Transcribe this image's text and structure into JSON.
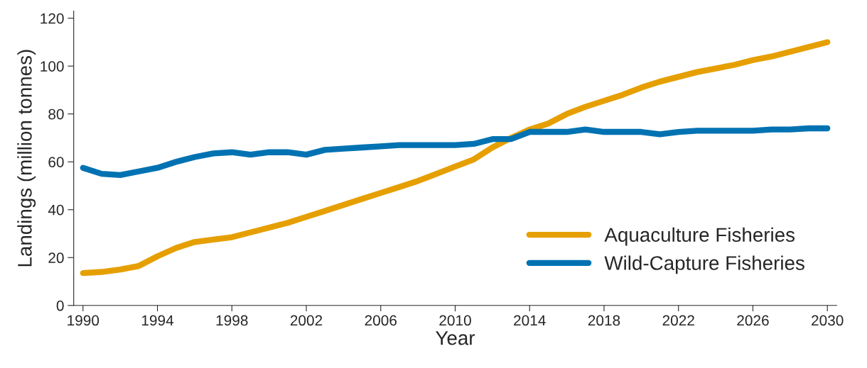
{
  "chart_data": {
    "type": "line",
    "xlabel": "Year",
    "ylabel": "Landings (million tonnes)",
    "x": [
      1990,
      1991,
      1992,
      1993,
      1994,
      1995,
      1996,
      1997,
      1998,
      1999,
      2000,
      2001,
      2002,
      2003,
      2004,
      2005,
      2006,
      2007,
      2008,
      2009,
      2010,
      2011,
      2012,
      2013,
      2014,
      2015,
      2016,
      2017,
      2018,
      2019,
      2020,
      2021,
      2022,
      2023,
      2024,
      2025,
      2026,
      2027,
      2028,
      2029,
      2030
    ],
    "series": [
      {
        "name": "Aquaculture Fisheries",
        "color": "#e69f00",
        "values": [
          13.5,
          14,
          15,
          16.5,
          20.5,
          24,
          26.5,
          27.5,
          28.5,
          30.5,
          32.5,
          34.5,
          37,
          39.5,
          42,
          44.5,
          47,
          49.5,
          52,
          55,
          58,
          61,
          66,
          70,
          73.5,
          76,
          80,
          83,
          85.5,
          88,
          91,
          93.5,
          95.5,
          97.5,
          99,
          100.5,
          102.5,
          104,
          106,
          108,
          110
        ]
      },
      {
        "name": "Wild-Capture Fisheries",
        "color": "#0072b2",
        "values": [
          57.5,
          55,
          54.5,
          56,
          57.5,
          60,
          62,
          63.5,
          64,
          63,
          64,
          64,
          63,
          65,
          65.5,
          66,
          66.5,
          67,
          67,
          67,
          67,
          67.5,
          69.5,
          69.5,
          72.5,
          72.5,
          72.5,
          73.5,
          72.5,
          72.5,
          72.5,
          71.5,
          72.5,
          73,
          73,
          73,
          73,
          73.5,
          73.5,
          74,
          74
        ]
      }
    ],
    "xlim": [
      1989.5,
      2030.5
    ],
    "ylim": [
      0,
      123
    ],
    "xticks": [
      1990,
      1994,
      1998,
      2002,
      2006,
      2010,
      2014,
      2018,
      2022,
      2026,
      2030
    ],
    "yticks": [
      0,
      20,
      40,
      60,
      80,
      100,
      120
    ],
    "grid": false,
    "legend": "bottom right",
    "marker": "none",
    "line_style": "solid"
  }
}
